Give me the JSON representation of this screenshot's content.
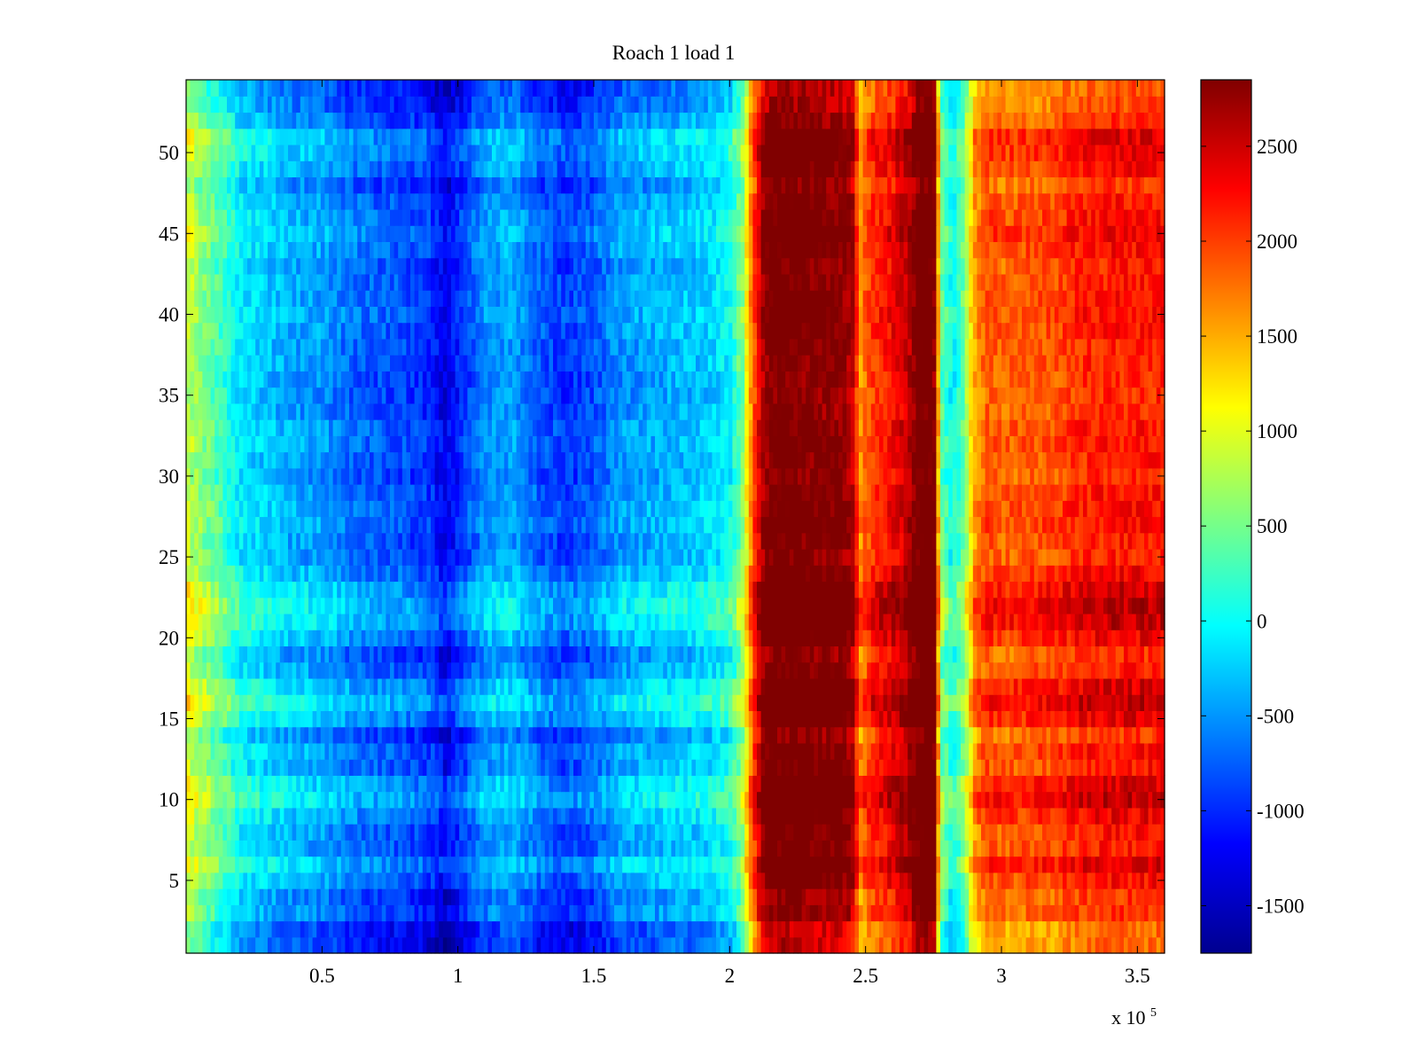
{
  "chart_data": {
    "type": "heatmap",
    "title": "Roach 1 load 1",
    "xlabel": "",
    "ylabel": "",
    "x_multiplier_label": "x 10",
    "x_multiplier_exponent": "5",
    "xlim": [
      0,
      3.6
    ],
    "ylim": [
      0.5,
      54.5
    ],
    "x_ticks": [
      0.5,
      1,
      1.5,
      2,
      2.5,
      3,
      3.5
    ],
    "x_tick_labels": [
      "0.5",
      "1",
      "1.5",
      "2",
      "2.5",
      "3",
      "3.5"
    ],
    "y_ticks": [
      5,
      10,
      15,
      20,
      25,
      30,
      35,
      40,
      45,
      50
    ],
    "y_tick_labels": [
      "5",
      "10",
      "15",
      "20",
      "25",
      "30",
      "35",
      "40",
      "45",
      "50"
    ],
    "rows": 54,
    "colorbar": {
      "colormap": "jet",
      "clim": [
        -1750,
        2850
      ],
      "ticks": [
        -1500,
        -1000,
        -500,
        0,
        500,
        1000,
        1500,
        2000,
        2500
      ],
      "tick_labels": [
        "-1500",
        "-1000",
        "-500",
        "0",
        "500",
        "1000",
        "1500",
        "2000",
        "2500"
      ]
    },
    "column_profile": {
      "x": [
        0,
        0.05,
        0.1,
        0.15,
        0.2,
        0.3,
        0.4,
        0.5,
        0.6,
        0.7,
        0.8,
        0.9,
        0.95,
        1.0,
        1.05,
        1.1,
        1.2,
        1.3,
        1.4,
        1.5,
        1.6,
        1.7,
        1.8,
        1.9,
        2.0,
        2.05,
        2.08,
        2.12,
        2.15,
        2.2,
        2.3,
        2.4,
        2.45,
        2.48,
        2.52,
        2.6,
        2.65,
        2.7,
        2.75,
        2.78,
        2.82,
        2.86,
        2.9,
        2.95,
        3.0,
        3.1,
        3.2,
        3.3,
        3.4,
        3.5,
        3.6
      ],
      "values": [
        700,
        400,
        150,
        -50,
        -350,
        -500,
        -650,
        -700,
        -900,
        -1000,
        -1050,
        -1200,
        -1500,
        -1250,
        -1000,
        -750,
        -650,
        -1000,
        -1150,
        -1000,
        -700,
        -650,
        -550,
        -500,
        -250,
        400,
        1500,
        2400,
        2700,
        2750,
        2650,
        2600,
        2450,
        1400,
        1800,
        2050,
        2300,
        2800,
        2850,
        200,
        -250,
        200,
        1300,
        1700,
        1600,
        1650,
        1700,
        1900,
        1950,
        1950,
        1950
      ]
    },
    "row_profile": {
      "rows": [
        1,
        2,
        3,
        4,
        5,
        6,
        7,
        8,
        9,
        10,
        11,
        12,
        13,
        14,
        15,
        16,
        17,
        18,
        19,
        20,
        21,
        22,
        23,
        24,
        25,
        26,
        27,
        28,
        29,
        30,
        31,
        32,
        33,
        34,
        35,
        36,
        37,
        38,
        39,
        40,
        41,
        42,
        43,
        44,
        45,
        46,
        47,
        48,
        49,
        50,
        51,
        52,
        53,
        54
      ],
      "offsets": [
        -150,
        -150,
        150,
        100,
        300,
        500,
        250,
        250,
        400,
        600,
        500,
        250,
        300,
        100,
        450,
        650,
        500,
        250,
        150,
        400,
        600,
        650,
        550,
        350,
        200,
        200,
        300,
        300,
        250,
        150,
        200,
        250,
        250,
        150,
        150,
        150,
        200,
        200,
        250,
        300,
        250,
        250,
        200,
        300,
        400,
        300,
        250,
        100,
        300,
        400,
        450,
        150,
        0,
        -50
      ]
    }
  }
}
